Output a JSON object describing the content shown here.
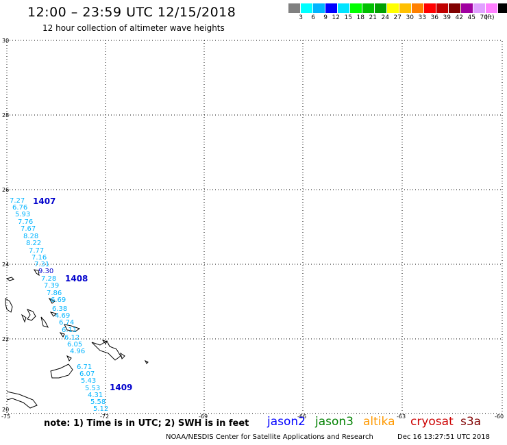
{
  "header": {
    "title": "12:00 – 23:59 UTC 12/15/2018",
    "subtitle": "12 hour collection of altimeter wave heights"
  },
  "legend": {
    "colors": [
      "#808080",
      "#00ffff",
      "#00b4ff",
      "#0000ff",
      "#00e4ff",
      "#00ff00",
      "#00c000",
      "#00a000",
      "#ffff00",
      "#ffc000",
      "#ff8000",
      "#ff0000",
      "#c00000",
      "#800000",
      "#a000a0",
      "#e0a0ff",
      "#ff80ff",
      "#000000"
    ],
    "labels": [
      "3",
      "6",
      "9",
      "12",
      "15",
      "18",
      "21",
      "24",
      "27",
      "30",
      "33",
      "36",
      "39",
      "42",
      "45",
      "70"
    ],
    "unit": "(ft)"
  },
  "axes": {
    "lat_labels": [
      "30",
      "28",
      "26",
      "24",
      "22",
      "20"
    ],
    "lon_labels": [
      "-75",
      "-72",
      "-69",
      "-66",
      "-63",
      "-60"
    ]
  },
  "tracks": [
    {
      "label": "1407",
      "points": [
        {
          "value": "7.27",
          "color": "#00b4ff"
        },
        {
          "value": "6.76",
          "color": "#00b4ff"
        },
        {
          "value": "5.93",
          "color": "#00b4ff"
        },
        {
          "value": "7.76",
          "color": "#00b4ff"
        },
        {
          "value": "7.67",
          "color": "#00b4ff"
        },
        {
          "value": "8.28",
          "color": "#00b4ff"
        },
        {
          "value": "8.22",
          "color": "#00b4ff"
        },
        {
          "value": "7.77",
          "color": "#00b4ff"
        },
        {
          "value": "7.16",
          "color": "#00b4ff"
        },
        {
          "value": "7.31",
          "color": "#00b4ff"
        },
        {
          "value": "9.30",
          "color": "#0000cc"
        }
      ]
    },
    {
      "label": "1408",
      "points": [
        {
          "value": "7.28",
          "color": "#00b4ff"
        },
        {
          "value": "7.39",
          "color": "#00b4ff"
        },
        {
          "value": "7.86",
          "color": "#00b4ff"
        },
        {
          "value": "6.69",
          "color": "#00b4ff"
        },
        {
          "value": "6.38",
          "color": "#00b4ff"
        },
        {
          "value": "4.69",
          "color": "#00b4ff"
        },
        {
          "value": "6.74",
          "color": "#00b4ff"
        },
        {
          "value": "6.11",
          "color": "#00b4ff"
        },
        {
          "value": "6.12",
          "color": "#00b4ff"
        },
        {
          "value": "6.05",
          "color": "#00b4ff"
        },
        {
          "value": "4.96",
          "color": "#00b4ff"
        }
      ]
    },
    {
      "label": "1409",
      "points": [
        {
          "value": "6.71",
          "color": "#00b4ff"
        },
        {
          "value": "6.07",
          "color": "#00b4ff"
        },
        {
          "value": "5.43",
          "color": "#00b4ff"
        },
        {
          "value": "5.53",
          "color": "#00b4ff"
        },
        {
          "value": "4.31",
          "color": "#00b4ff"
        },
        {
          "value": "5.58",
          "color": "#00b4ff"
        },
        {
          "value": "5.12",
          "color": "#00b4ff"
        }
      ]
    }
  ],
  "footer": {
    "note": "note:  1) Time is in UTC;  2) SWH is in feet",
    "satellites": [
      {
        "name": "jason2",
        "color": "#0000ff"
      },
      {
        "name": "jason3",
        "color": "#008000"
      },
      {
        "name": "altika",
        "color": "#ff9900"
      },
      {
        "name": "cryosat",
        "color": "#cc0000"
      },
      {
        "name": "s3a",
        "color": "#800000"
      }
    ],
    "credit": "NOAA/NESDIS Center for Satellite Applications and Research",
    "timestamp": "Dec 16 13:27:51 UTC 2018"
  }
}
